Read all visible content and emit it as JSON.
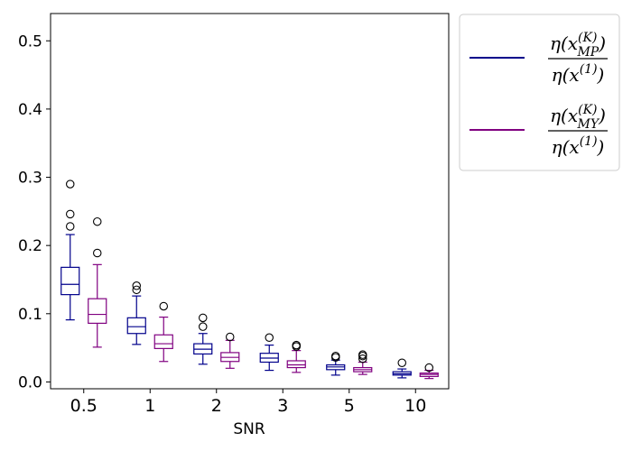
{
  "chart_data": {
    "type": "box",
    "title": "",
    "xlabel": "SNR",
    "ylabel": "",
    "ylim": [
      -0.01,
      0.54
    ],
    "yticks": [
      0.0,
      0.1,
      0.2,
      0.3,
      0.4,
      0.5
    ],
    "ytick_labels": [
      "0.0",
      "0.1",
      "0.2",
      "0.3",
      "0.4",
      "0.5"
    ],
    "categories": [
      "0.5",
      "1",
      "2",
      "3",
      "5",
      "10"
    ],
    "legend_position": "outside-right",
    "series": [
      {
        "name": "η(x_MP^(K)) / η(x^(1))",
        "legend_num": "η(x",
        "legend_num_sub": "MP",
        "legend_num_sup": "(K)",
        "legend_den": "η(x",
        "legend_den_sup": "(1)",
        "color": "#00008b",
        "boxes": [
          {
            "whislo": 0.091,
            "q1": 0.128,
            "med": 0.143,
            "q3": 0.168,
            "whishi": 0.216,
            "fliers": [
              0.228,
              0.246,
              0.29
            ]
          },
          {
            "whislo": 0.055,
            "q1": 0.071,
            "med": 0.081,
            "q3": 0.094,
            "whishi": 0.126,
            "fliers": [
              0.135,
              0.141
            ]
          },
          {
            "whislo": 0.026,
            "q1": 0.041,
            "med": 0.048,
            "q3": 0.056,
            "whishi": 0.071,
            "fliers": [
              0.081,
              0.094
            ]
          },
          {
            "whislo": 0.017,
            "q1": 0.029,
            "med": 0.035,
            "q3": 0.042,
            "whishi": 0.054,
            "fliers": [
              0.065
            ]
          },
          {
            "whislo": 0.01,
            "q1": 0.018,
            "med": 0.022,
            "q3": 0.025,
            "whishi": 0.032,
            "fliers": [
              0.036,
              0.038
            ]
          },
          {
            "whislo": 0.006,
            "q1": 0.01,
            "med": 0.012,
            "q3": 0.015,
            "whishi": 0.019,
            "fliers": [
              0.028
            ]
          }
        ]
      },
      {
        "name": "η(x_MY^(K)) / η(x^(1))",
        "legend_num": "η(x",
        "legend_num_sub": "MY",
        "legend_num_sup": "(K)",
        "legend_den": "η(x",
        "legend_den_sup": "(1)",
        "color": "#800080",
        "boxes": [
          {
            "whislo": 0.051,
            "q1": 0.086,
            "med": 0.099,
            "q3": 0.122,
            "whishi": 0.172,
            "fliers": [
              0.189,
              0.235
            ]
          },
          {
            "whislo": 0.03,
            "q1": 0.049,
            "med": 0.056,
            "q3": 0.069,
            "whishi": 0.095,
            "fliers": [
              0.111
            ]
          },
          {
            "whislo": 0.02,
            "q1": 0.03,
            "med": 0.036,
            "q3": 0.043,
            "whishi": 0.061,
            "fliers": [
              0.066
            ]
          },
          {
            "whislo": 0.014,
            "q1": 0.021,
            "med": 0.025,
            "q3": 0.031,
            "whishi": 0.046,
            "fliers": [
              0.052,
              0.054
            ]
          },
          {
            "whislo": 0.011,
            "q1": 0.015,
            "med": 0.018,
            "q3": 0.021,
            "whishi": 0.029,
            "fliers": [
              0.034,
              0.038,
              0.04
            ]
          },
          {
            "whislo": 0.005,
            "q1": 0.008,
            "med": 0.011,
            "q3": 0.013,
            "whishi": 0.017,
            "fliers": [
              0.021
            ]
          }
        ]
      }
    ]
  }
}
